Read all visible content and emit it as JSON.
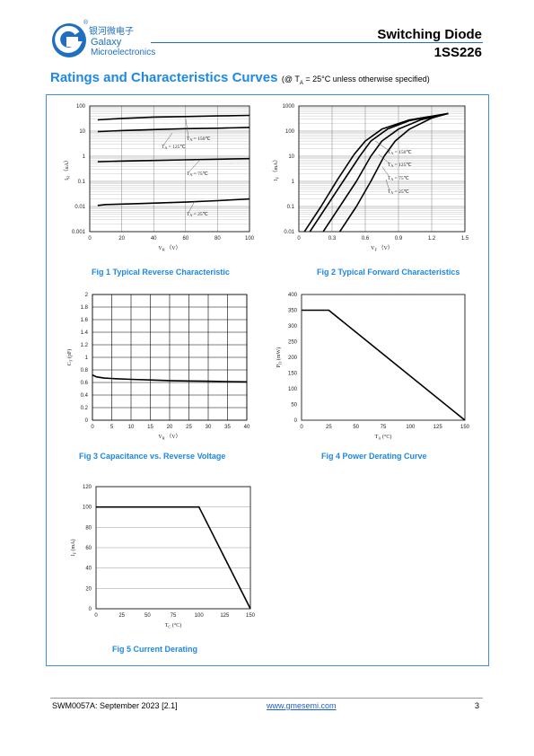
{
  "header": {
    "logo_cn": "银河微电子",
    "logo_name_1": "Galaxy",
    "logo_name_2": "Microelectronics",
    "logo_mark": "®",
    "title": "Switching Diode",
    "part": "1SS226",
    "brand_color": "#1e6fbf",
    "accent_color": "#3d8ee0"
  },
  "section": {
    "title": "Ratings and Characteristics Curves",
    "note_open": "(@ T",
    "note_sub": "A",
    "note_rest": " = 25°C unless otherwise specified)"
  },
  "footer": {
    "doc": "SWM0057A: September 2023 [2.1]",
    "link": "www.gmesemi.com",
    "page": "3"
  },
  "chart_data": [
    {
      "id": "fig1",
      "type": "line",
      "caption": "Fig 1    Typical Reverse Characteristic",
      "xlabel": "V",
      "xlabel_sub": "R",
      "xlabel_unit": "（V）",
      "ylabel": "I",
      "ylabel_sub": "R",
      "ylabel_unit": "（uA）",
      "x_scale": "linear",
      "y_scale": "log",
      "xlim": [
        0,
        100
      ],
      "ylim": [
        0.001,
        100
      ],
      "x_ticks": [
        "0",
        "20",
        "40",
        "60",
        "80",
        "100"
      ],
      "y_ticks": [
        "100",
        "10",
        "1",
        "0.1",
        "0.01",
        "0.001"
      ],
      "grid": true,
      "series": [
        {
          "name": "TA = 150℃",
          "x": [
            5,
            20,
            40,
            60,
            80,
            100
          ],
          "y": [
            28,
            32,
            36,
            38,
            40,
            42
          ]
        },
        {
          "name": "TA = 125℃",
          "x": [
            5,
            20,
            40,
            60,
            80,
            100
          ],
          "y": [
            9.5,
            10.5,
            11.5,
            12.5,
            13,
            14
          ]
        },
        {
          "name": "TA = 75℃",
          "x": [
            5,
            20,
            40,
            60,
            80,
            100
          ],
          "y": [
            0.6,
            0.64,
            0.68,
            0.72,
            0.76,
            0.8
          ]
        },
        {
          "name": "TA = 25℃",
          "x": [
            5,
            10,
            30,
            60,
            80,
            100
          ],
          "y": [
            0.011,
            0.012,
            0.013,
            0.015,
            0.017,
            0.02
          ]
        }
      ],
      "annotations": [
        "T",
        "A",
        " = 150℃",
        " = 125℃",
        " = 75℃",
        " = 25℃"
      ]
    },
    {
      "id": "fig2",
      "type": "line",
      "caption": "Fig 2    Typical Forward Characteristics",
      "xlabel": "V",
      "xlabel_sub": "F",
      "xlabel_unit": "（V）",
      "ylabel": "I",
      "ylabel_sub": "F",
      "ylabel_unit": "（mA）",
      "x_scale": "linear",
      "y_scale": "log",
      "xlim": [
        0,
        1.5
      ],
      "ylim": [
        0.01,
        1000
      ],
      "x_ticks": [
        "0",
        "0.3",
        "0.6",
        "0.9",
        "1.2",
        "1.5"
      ],
      "y_ticks": [
        "1000",
        "100",
        "10",
        "1",
        "0.1",
        "0.01"
      ],
      "grid": true,
      "series": [
        {
          "name": "TA = 150℃",
          "x": [
            0.05,
            0.2,
            0.35,
            0.5,
            0.6,
            0.75,
            1.0,
            1.35
          ],
          "y": [
            0.01,
            0.1,
            1.2,
            12,
            40,
            120,
            280,
            500
          ]
        },
        {
          "name": "TA = 125℃",
          "x": [
            0.1,
            0.25,
            0.4,
            0.55,
            0.65,
            0.8,
            1.0,
            1.35
          ],
          "y": [
            0.01,
            0.1,
            1,
            10,
            40,
            120,
            260,
            500
          ]
        },
        {
          "name": "TA = 75℃",
          "x": [
            0.22,
            0.37,
            0.52,
            0.65,
            0.75,
            0.9,
            1.1,
            1.35
          ],
          "y": [
            0.01,
            0.1,
            1,
            10,
            40,
            120,
            280,
            500
          ]
        },
        {
          "name": "TA = 25℃",
          "x": [
            0.37,
            0.52,
            0.65,
            0.77,
            0.87,
            1.0,
            1.2,
            1.35
          ],
          "y": [
            0.01,
            0.1,
            1,
            10,
            40,
            120,
            330,
            500
          ]
        }
      ],
      "annotations": [
        "T",
        "A",
        " = 150℃",
        " = 125℃",
        " = 75℃",
        " = 25℃"
      ]
    },
    {
      "id": "fig3",
      "type": "line",
      "caption": "Fig 3    Capacitance vs. Reverse Voltage",
      "xlabel": "V",
      "xlabel_sub": "R",
      "xlabel_unit": "（V）",
      "ylabel": "C",
      "ylabel_sub": "T",
      "ylabel_unit": "(pF)",
      "xlim": [
        0,
        40
      ],
      "ylim": [
        0,
        2
      ],
      "x_ticks": [
        "0",
        "5",
        "10",
        "15",
        "20",
        "25",
        "30",
        "35",
        "40"
      ],
      "y_ticks": [
        "2",
        "1.8",
        "1.6",
        "1.4",
        "1.2",
        "1",
        "0.8",
        "0.6",
        "0.4",
        "0.2",
        "0"
      ],
      "grid": true,
      "series": [
        {
          "x": [
            0,
            1,
            3,
            6,
            10,
            15,
            20,
            25,
            30,
            35,
            40
          ],
          "y": [
            0.72,
            0.69,
            0.67,
            0.66,
            0.65,
            0.64,
            0.63,
            0.625,
            0.62,
            0.615,
            0.61
          ]
        }
      ]
    },
    {
      "id": "fig4",
      "type": "line",
      "caption": "Fig 4    Power Derating Curve",
      "xlabel": "T",
      "xlabel_sub": "A",
      "xlabel_unit": "(°C)",
      "ylabel": "P",
      "ylabel_sub": "D",
      "ylabel_unit": "(mW)",
      "xlim": [
        0,
        150
      ],
      "ylim": [
        0,
        400
      ],
      "x_ticks": [
        "0",
        "25",
        "50",
        "75",
        "100",
        "125",
        "150"
      ],
      "y_ticks": [
        "400",
        "350",
        "300",
        "250",
        "200",
        "150",
        "100",
        "50",
        "0"
      ],
      "grid": false,
      "series": [
        {
          "x": [
            0,
            25,
            150
          ],
          "y": [
            350,
            350,
            0
          ]
        }
      ]
    },
    {
      "id": "fig5",
      "type": "line",
      "caption": "Fig 5    Current Derating",
      "xlabel": "T",
      "xlabel_sub": "C",
      "xlabel_unit": "(°C)",
      "ylabel": "I",
      "ylabel_sub": "F",
      "ylabel_unit": "(mA)",
      "xlim": [
        0,
        150
      ],
      "ylim": [
        0,
        120
      ],
      "x_ticks": [
        "0",
        "25",
        "50",
        "75",
        "100",
        "125",
        "150"
      ],
      "y_ticks": [
        "120",
        "100",
        "80",
        "60",
        "40",
        "20",
        "0"
      ],
      "grid": "horizontal",
      "series": [
        {
          "x": [
            0,
            100,
            150
          ],
          "y": [
            100,
            100,
            0
          ]
        }
      ]
    }
  ]
}
